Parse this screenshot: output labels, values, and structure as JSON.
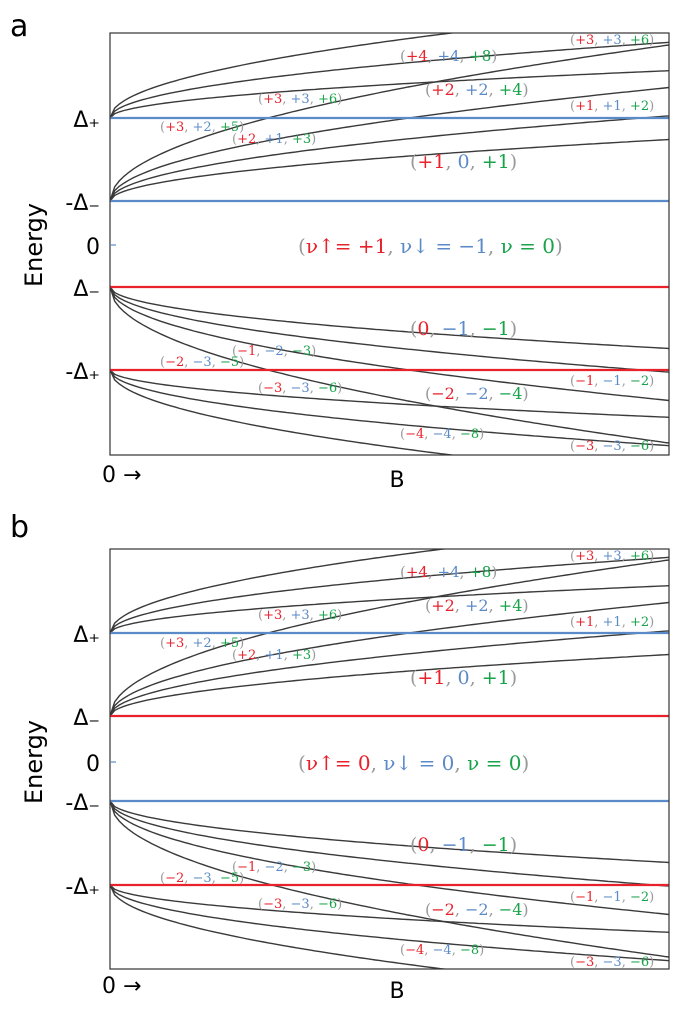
{
  "colors": {
    "red": "#e8212b",
    "blue": "#5b8ac8",
    "green": "#18a34a",
    "gray": "#999999",
    "curve": "#3a3a3a",
    "frame": "#333333"
  },
  "panels": [
    {
      "letter": "a",
      "ylabel": "Energy",
      "xlabel": "B",
      "origin_label": "0 →",
      "ytick_labels": [
        {
          "text": "Δ₊",
          "level": "d_plus"
        },
        {
          "text": "-Δ₋",
          "level": "neg_d_minus"
        },
        {
          "text": "0",
          "level": "zero"
        },
        {
          "text": "Δ₋",
          "level": "d_minus"
        },
        {
          "text": "-Δ₊",
          "level": "neg_d_plus"
        }
      ],
      "levels": [
        {
          "name": "d_plus",
          "color": "blue"
        },
        {
          "name": "neg_d_minus",
          "color": "blue"
        },
        {
          "name": "d_minus",
          "color": "red"
        },
        {
          "name": "neg_d_plus",
          "color": "red"
        }
      ],
      "center_label": [
        "(",
        "ν↑= +1",
        ", ",
        "ν↓ = −1",
        ", ",
        "ν = 0",
        ")"
      ],
      "labels": [
        {
          "t": [
            "+4",
            "+4",
            "+8"
          ]
        },
        {
          "t": [
            "+3",
            "+3",
            "+6"
          ]
        },
        {
          "t": [
            "+2",
            "+2",
            "+4"
          ]
        },
        {
          "t": [
            "+3",
            "+3",
            "+6"
          ]
        },
        {
          "t": [
            "+1",
            "+1",
            "+2"
          ]
        },
        {
          "t": [
            "+3",
            "+2",
            "+5"
          ]
        },
        {
          "t": [
            "+2",
            "+1",
            "+3"
          ]
        },
        {
          "t": [
            "+1",
            "0",
            "+1"
          ]
        },
        {
          "t": [
            "0",
            "−1",
            "−1"
          ]
        },
        {
          "t": [
            "−1",
            "−2",
            "−3"
          ]
        },
        {
          "t": [
            "−2",
            "−3",
            "−5"
          ]
        },
        {
          "t": [
            "−3",
            "−3",
            "−6"
          ]
        },
        {
          "t": [
            "−2",
            "−2",
            "−4"
          ]
        },
        {
          "t": [
            "−1",
            "−1",
            "−2"
          ]
        },
        {
          "t": [
            "−4",
            "−4",
            "−8"
          ]
        },
        {
          "t": [
            "−3",
            "−3",
            "−6"
          ]
        }
      ]
    },
    {
      "letter": "b",
      "ylabel": "Energy",
      "xlabel": "B",
      "origin_label": "0 →",
      "ytick_labels": [
        {
          "text": "Δ₊",
          "level": "d_plus"
        },
        {
          "text": "Δ₋",
          "level": "d_minus"
        },
        {
          "text": "0",
          "level": "zero"
        },
        {
          "text": "-Δ₋",
          "level": "neg_d_minus"
        },
        {
          "text": "-Δ₊",
          "level": "neg_d_plus"
        }
      ],
      "levels": [
        {
          "name": "d_plus",
          "color": "blue"
        },
        {
          "name": "d_minus",
          "color": "red"
        },
        {
          "name": "neg_d_minus",
          "color": "blue"
        },
        {
          "name": "neg_d_plus",
          "color": "red"
        }
      ],
      "center_label": [
        "(",
        "ν↑= 0",
        ", ",
        "ν↓ = 0",
        ", ",
        "ν = 0",
        ")"
      ],
      "labels": [
        {
          "t": [
            "+4",
            "+4",
            "+8"
          ]
        },
        {
          "t": [
            "+3",
            "+3",
            "+6"
          ]
        },
        {
          "t": [
            "+2",
            "+2",
            "+4"
          ]
        },
        {
          "t": [
            "+3",
            "+3",
            "+6"
          ]
        },
        {
          "t": [
            "+1",
            "+1",
            "+2"
          ]
        },
        {
          "t": [
            "+3",
            "+2",
            "+5"
          ]
        },
        {
          "t": [
            "+2",
            "+1",
            "+3"
          ]
        },
        {
          "t": [
            "+1",
            "0",
            "+1"
          ]
        },
        {
          "t": [
            "0",
            "−1",
            "−1"
          ]
        },
        {
          "t": [
            "−1",
            "−2",
            "−3"
          ]
        },
        {
          "t": [
            "−2",
            "−3",
            "−5"
          ]
        },
        {
          "t": [
            "−3",
            "−3",
            "−6"
          ]
        },
        {
          "t": [
            "−2",
            "−2",
            "−4"
          ]
        },
        {
          "t": [
            "−1",
            "−1",
            "−2"
          ]
        },
        {
          "t": [
            "−4",
            "−4",
            "−8"
          ]
        },
        {
          "t": [
            "−3",
            "−3",
            "−6"
          ]
        }
      ]
    }
  ]
}
